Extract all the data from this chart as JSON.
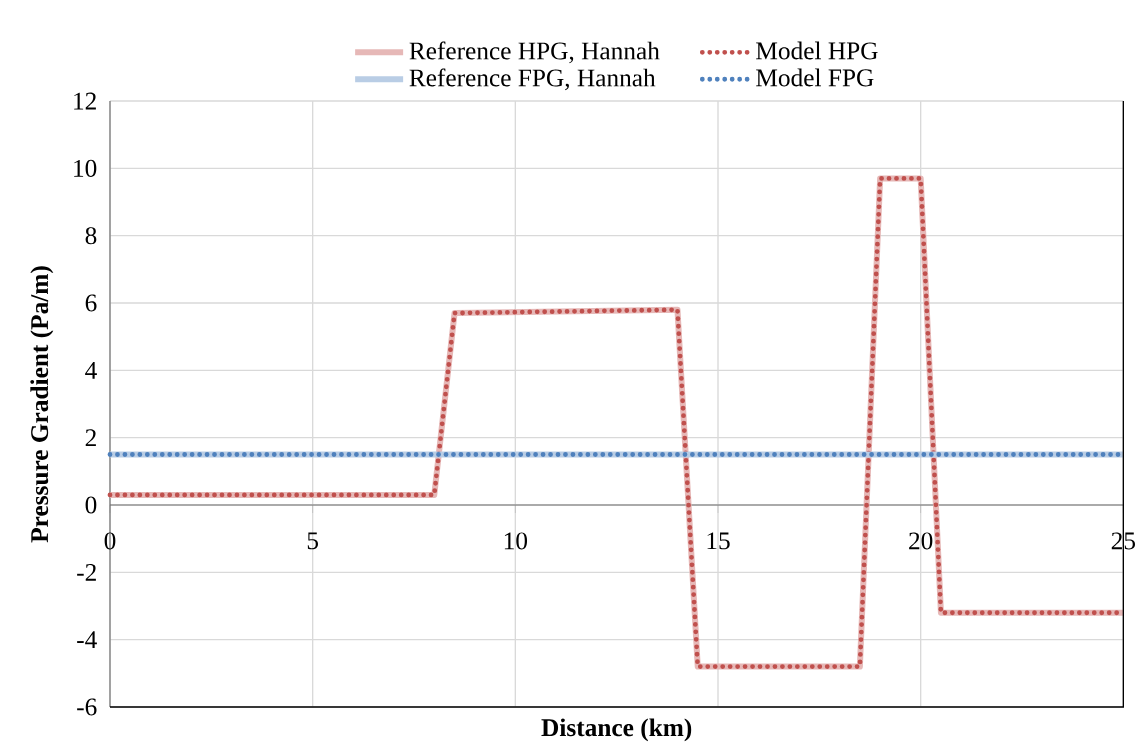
{
  "chart_data": {
    "type": "line",
    "xlabel": "Distance (km)",
    "ylabel": "Pressure Gradient (Pa/m)",
    "xlim": [
      0,
      25
    ],
    "xticks": [
      0,
      5,
      10,
      15,
      20,
      25
    ],
    "ylim": [
      -6,
      12
    ],
    "yticks": [
      -6,
      -4,
      -2,
      0,
      2,
      4,
      6,
      8,
      10,
      12
    ],
    "grid": true,
    "legend": "top",
    "marker": "none",
    "series": [
      {
        "name": "Reference HPG, Hannah",
        "color": "#e6b8b7",
        "line_style": "solid",
        "x": [
          0,
          8.0,
          8.5,
          14.0,
          14.5,
          18.5,
          19.0,
          20.0,
          20.5,
          25
        ],
        "values": [
          0.3,
          0.3,
          5.7,
          5.8,
          -4.8,
          -4.8,
          9.7,
          9.7,
          -3.2,
          -3.2
        ]
      },
      {
        "name": "Model HPG",
        "color": "#c0504d",
        "line_style": "dotted",
        "x": [
          0,
          8.0,
          8.5,
          14.0,
          14.5,
          18.5,
          19.0,
          20.0,
          20.5,
          25
        ],
        "values": [
          0.3,
          0.3,
          5.7,
          5.8,
          -4.8,
          -4.8,
          9.7,
          9.7,
          -3.2,
          -3.2
        ]
      },
      {
        "name": "Reference FPG, Hannah",
        "color": "#b9cde5",
        "line_style": "solid",
        "x": [
          0,
          25
        ],
        "values": [
          1.5,
          1.5
        ]
      },
      {
        "name": "Model FPG",
        "color": "#4f81bd",
        "line_style": "dotted",
        "x": [
          0,
          25
        ],
        "values": [
          1.5,
          1.5
        ]
      }
    ]
  }
}
